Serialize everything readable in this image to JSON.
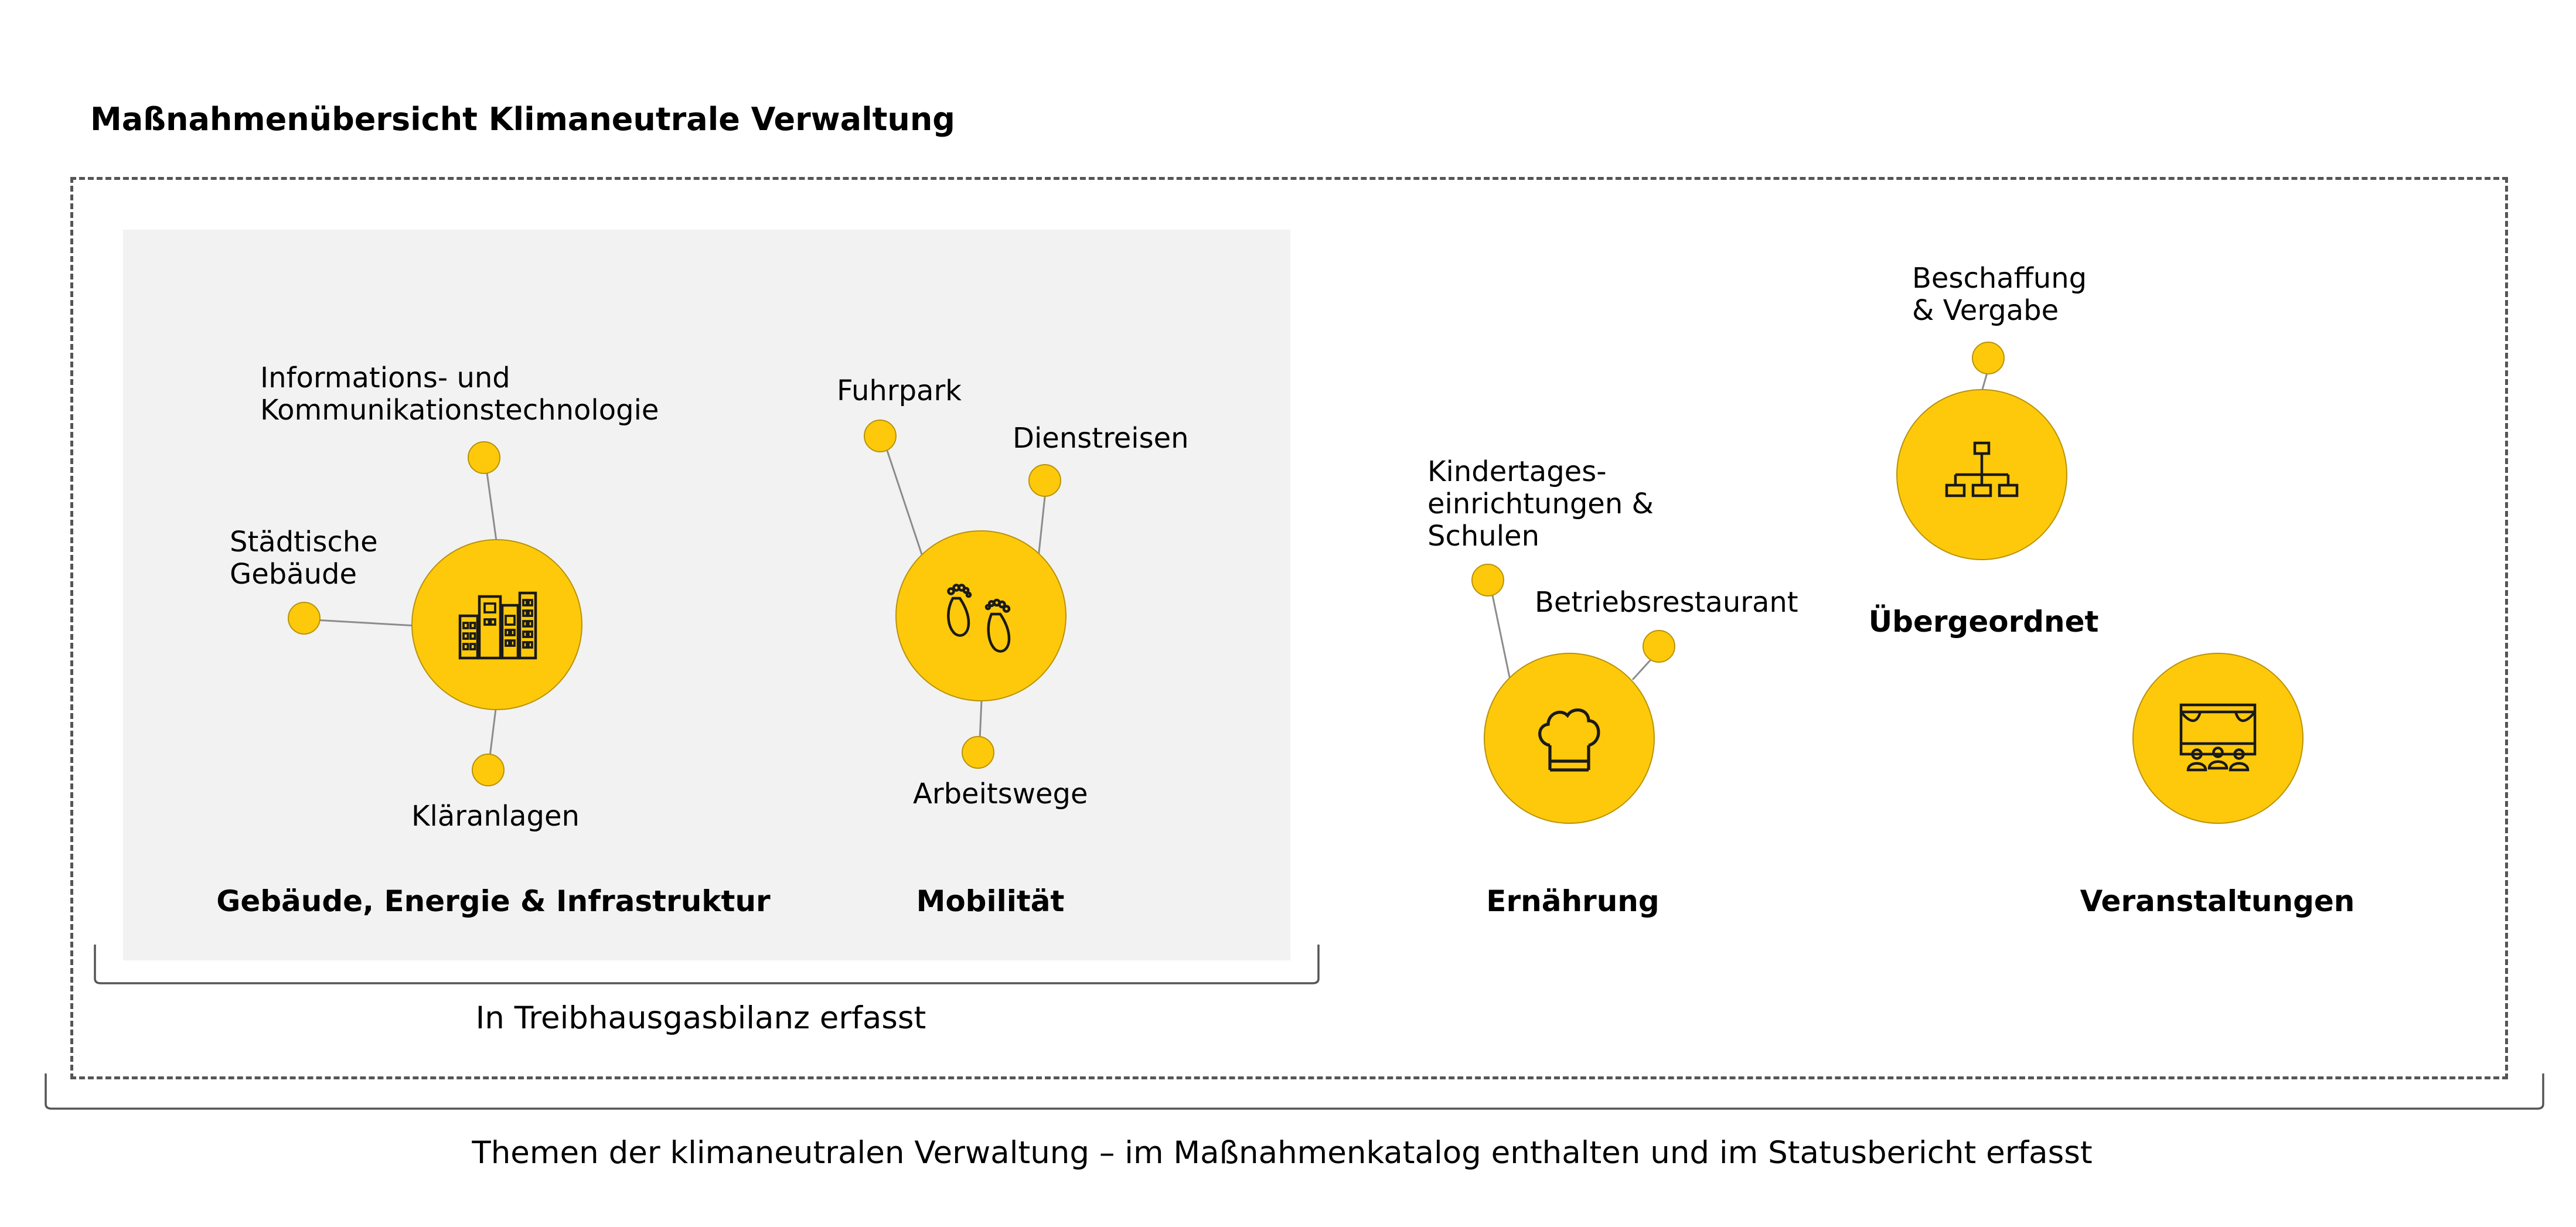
{
  "title": "Maßnahmenübersicht Klimaneutrale Verwaltung",
  "colors": {
    "bubble": "#fec90a",
    "panel": "#f2f2f2",
    "icon_stroke": "#1a1a1a"
  },
  "groups": {
    "buildings": {
      "category": "Gebäude, Energie & Infrastruktur",
      "icon": "city-buildings-icon",
      "items": [
        "Informations- und\nKommunikationstechnologie",
        "Städtische\nGebäude",
        "Kläranlagen"
      ]
    },
    "mobility": {
      "category": "Mobilität",
      "icon": "footprints-icon",
      "items": [
        "Fuhrpark",
        "Dienstreisen",
        "Arbeitswege"
      ]
    },
    "nutrition": {
      "category": "Ernährung",
      "icon": "chef-hat-icon",
      "items": [
        "Kindertages-\neinrichtungen &\nSchulen",
        "Betriebsrestaurant"
      ]
    },
    "overarching": {
      "category": "Übergeordnet",
      "icon": "org-chart-icon",
      "items": [
        "Beschaffung\n& Vergabe"
      ]
    },
    "events": {
      "category": "Veranstaltungen",
      "icon": "stage-audience-icon",
      "items": []
    }
  },
  "captions": {
    "ghg_balance": "In Treibhausgasbilanz erfasst",
    "all_topics": "Themen der klimaneutralen Verwaltung – im Maßnahmenkatalog enthalten und im Statusbericht erfasst"
  }
}
